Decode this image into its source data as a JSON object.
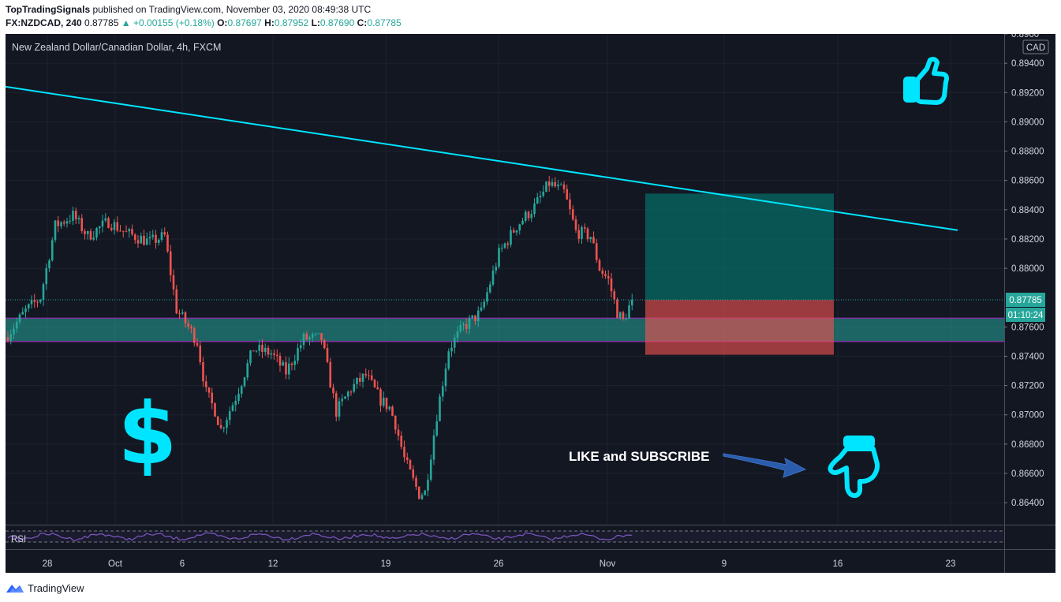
{
  "header": {
    "publisher": "TopTradingSignals",
    "published_text": "published on TradingView.com, November 03, 2020 08:49:38 UTC",
    "symbol": "FX:NZDCAD, 240",
    "last": "0.87785",
    "change_arrow": "▲",
    "change": "+0.00155 (+0.18%)",
    "open_label": "O:",
    "open": "0.87697",
    "high_label": "H:",
    "high": "0.87952",
    "low_label": "L:",
    "low": "0.87690",
    "close_label": "C:",
    "close": "0.87785"
  },
  "footer": {
    "brand": "TradingView",
    "icon": "tradingview-logo-icon"
  },
  "colors": {
    "bg": "#131722",
    "up": "#26a69a",
    "down": "#ef5350",
    "trendline": "#00e5ff",
    "zone_border": "#9c27b0",
    "accent": "#00e5ff"
  },
  "chart_data": {
    "type": "candlestick",
    "title": "New Zealand Dollar/Canadian Dollar, 4h, FXCM",
    "currency": "CAD",
    "y_ticks": [
      "0.89400",
      "0.89200",
      "0.89000",
      "0.88800",
      "0.88600",
      "0.88400",
      "0.88200",
      "0.88000",
      "0.87600",
      "0.87400",
      "0.87200",
      "0.87000",
      "0.86800",
      "0.86600",
      "0.86400"
    ],
    "y_top_partial": "0.8960",
    "ylim": [
      0.8625,
      0.896
    ],
    "x_ticks": [
      "28",
      "Oct",
      "6",
      "12",
      "19",
      "26",
      "Nov",
      "9",
      "16",
      "23"
    ],
    "last_price": "0.87785",
    "countdown": "01:10:24",
    "trendline": {
      "start": 0.8924,
      "end": 0.8826
    },
    "support_zone": {
      "top": 0.8766,
      "bottom": 0.875
    },
    "position": {
      "target": 0.8851,
      "entry": 0.87785,
      "stop": 0.8741
    },
    "annotations": {
      "dollar": "$",
      "cta": "LIKE and SUBSCRIBE"
    },
    "rsi_label": "RSI",
    "icons": [
      "thumbs-up-icon",
      "pointing-hand-icon",
      "arrow-icon"
    ],
    "price_path": [
      [
        0,
        0.8755
      ],
      [
        6,
        0.8771
      ],
      [
        11,
        0.878
      ],
      [
        16,
        0.8829
      ],
      [
        22,
        0.8836
      ],
      [
        27,
        0.8822
      ],
      [
        34,
        0.8832
      ],
      [
        40,
        0.8824
      ],
      [
        48,
        0.8818
      ],
      [
        53,
        0.8822
      ],
      [
        57,
        0.8772
      ],
      [
        61,
        0.876
      ],
      [
        64,
        0.875
      ],
      [
        67,
        0.8715
      ],
      [
        70,
        0.8703
      ],
      [
        72,
        0.869
      ],
      [
        77,
        0.8712
      ],
      [
        83,
        0.8745
      ],
      [
        89,
        0.8742
      ],
      [
        94,
        0.8729
      ],
      [
        100,
        0.8752
      ],
      [
        106,
        0.8752
      ],
      [
        111,
        0.8702
      ],
      [
        116,
        0.8718
      ],
      [
        121,
        0.8727
      ],
      [
        126,
        0.871
      ],
      [
        129,
        0.8705
      ],
      [
        131,
        0.8694
      ],
      [
        134,
        0.867
      ],
      [
        137,
        0.8655
      ],
      [
        139,
        0.8646
      ],
      [
        141,
        0.8647
      ],
      [
        145,
        0.87
      ],
      [
        149,
        0.8745
      ],
      [
        154,
        0.876
      ],
      [
        160,
        0.877
      ],
      [
        166,
        0.881
      ],
      [
        172,
        0.8829
      ],
      [
        178,
        0.8842
      ],
      [
        183,
        0.8858
      ],
      [
        188,
        0.8852
      ],
      [
        192,
        0.8825
      ],
      [
        197,
        0.8822
      ],
      [
        200,
        0.88
      ],
      [
        203,
        0.8792
      ],
      [
        206,
        0.877
      ],
      [
        208,
        0.8764
      ],
      [
        211,
        0.87785
      ]
    ]
  }
}
